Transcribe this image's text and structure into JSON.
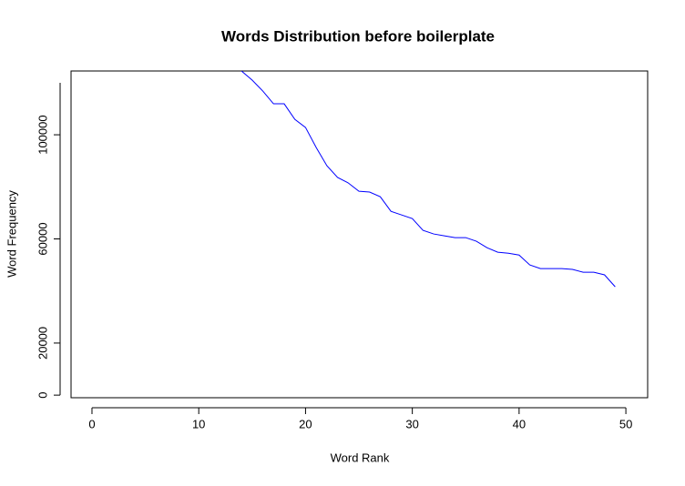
{
  "chart_data": {
    "type": "line",
    "title": "Words Distribution before boilerplate",
    "x_label": "Word Rank",
    "y_label": "Word Frequency",
    "x": [
      14,
      15,
      16,
      17,
      18,
      19,
      20,
      21,
      22,
      23,
      24,
      25,
      26,
      27,
      28,
      29,
      30,
      31,
      32,
      33,
      34,
      35,
      36,
      37,
      38,
      39,
      40,
      41,
      42,
      43,
      44,
      45,
      46,
      47,
      48,
      49
    ],
    "series": [
      {
        "color": "#0000ff",
        "values": [
          124500,
          121000,
          116800,
          111900,
          111900,
          105900,
          102800,
          95100,
          88100,
          83600,
          81500,
          78300,
          78000,
          76200,
          70600,
          69200,
          67800,
          63300,
          61900,
          61200,
          60500,
          60500,
          59100,
          56600,
          54900,
          54500,
          53800,
          50000,
          48600,
          48600,
          48600,
          48300,
          47200,
          47200,
          46200,
          41600
        ]
      }
    ],
    "xlim": [
      -1.96,
      52.04
    ],
    "ylim": [
      -1000,
      124500
    ],
    "xticks": [
      0,
      10,
      20,
      30,
      40,
      50
    ],
    "yticks": [
      0,
      20000,
      60000,
      100000
    ]
  }
}
